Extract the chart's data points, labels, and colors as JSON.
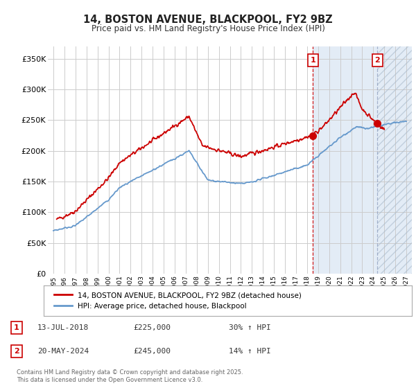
{
  "title": "14, BOSTON AVENUE, BLACKPOOL, FY2 9BZ",
  "subtitle": "Price paid vs. HM Land Registry's House Price Index (HPI)",
  "ylabel_values": [
    "£0",
    "£50K",
    "£100K",
    "£150K",
    "£200K",
    "£250K",
    "£300K",
    "£350K"
  ],
  "ylim": [
    0,
    370000
  ],
  "yticks": [
    0,
    50000,
    100000,
    150000,
    200000,
    250000,
    300000,
    350000
  ],
  "xlim_years": [
    1994.5,
    2027.5
  ],
  "xtick_years": [
    1995,
    1996,
    1997,
    1998,
    1999,
    2000,
    2001,
    2002,
    2003,
    2004,
    2005,
    2006,
    2007,
    2008,
    2009,
    2010,
    2011,
    2012,
    2013,
    2014,
    2015,
    2016,
    2017,
    2018,
    2019,
    2020,
    2021,
    2022,
    2023,
    2024,
    2025,
    2026,
    2027
  ],
  "marker1_year": 2018.53,
  "marker2_year": 2024.38,
  "marker1_price": 225000,
  "marker2_price": 245000,
  "legend_line1": "14, BOSTON AVENUE, BLACKPOOL, FY2 9BZ (detached house)",
  "legend_line2": "HPI: Average price, detached house, Blackpool",
  "table_row1": [
    "1",
    "13-JUL-2018",
    "£225,000",
    "30% ↑ HPI"
  ],
  "table_row2": [
    "2",
    "20-MAY-2024",
    "£245,000",
    "14% ↑ HPI"
  ],
  "footer": "Contains HM Land Registry data © Crown copyright and database right 2025.\nThis data is licensed under the Open Government Licence v3.0.",
  "red_color": "#cc0000",
  "blue_color": "#6699cc",
  "blue_light": "#ccddf0",
  "dashed_red": "#cc0000",
  "dashed_blue": "#8899bb",
  "bg_color": "#ffffff",
  "grid_color": "#cccccc"
}
